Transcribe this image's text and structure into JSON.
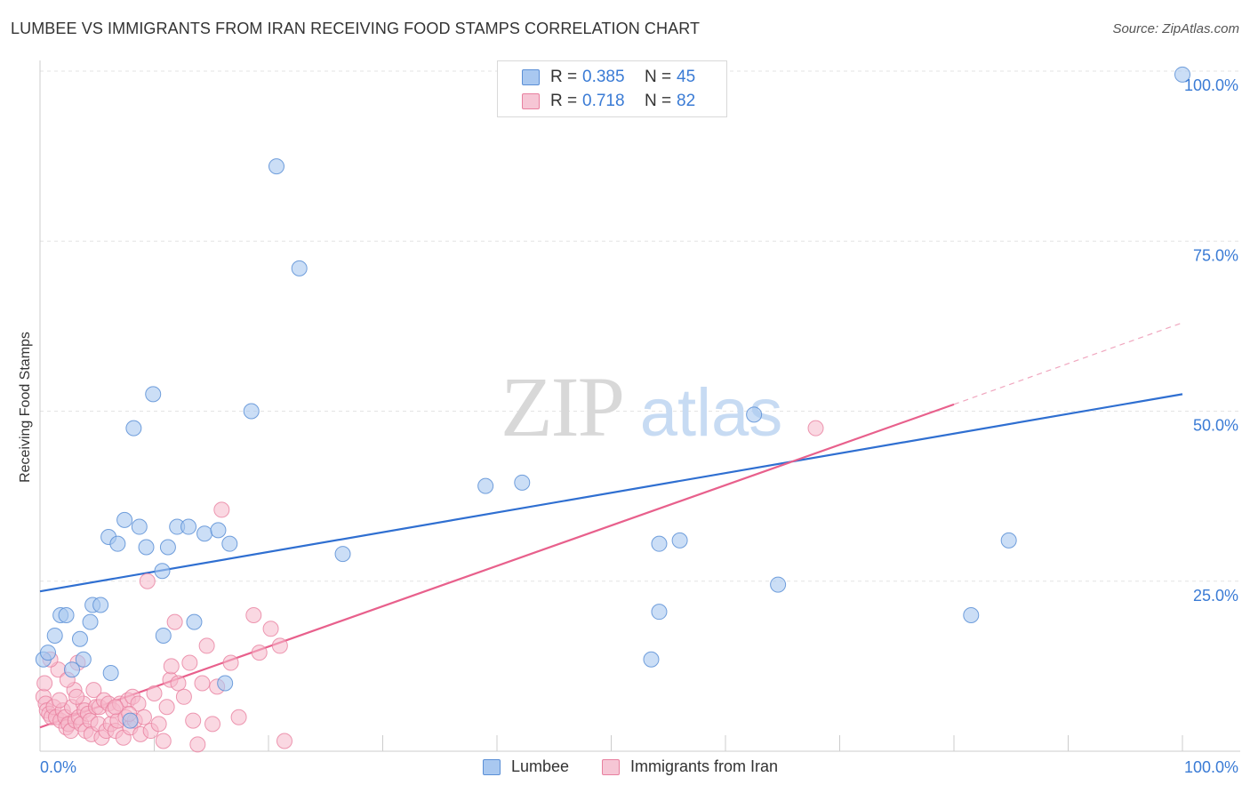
{
  "header": {
    "title": "LUMBEE VS IMMIGRANTS FROM IRAN RECEIVING FOOD STAMPS CORRELATION CHART",
    "source": "Source: ZipAtlas.com"
  },
  "watermark": {
    "zip": "ZIP",
    "atlas": "atlas"
  },
  "legend_top": [
    {
      "r_label": "R =",
      "r_value": "0.385",
      "n_label": "N =",
      "n_value": "45"
    },
    {
      "r_label": "R =",
      "r_value": "0.718",
      "n_label": "N =",
      "n_value": "82"
    }
  ],
  "legend_bottom": [
    "Lumbee",
    "Immigrants from Iran"
  ],
  "colors": {
    "lumbee_fill": "#a9c8f0",
    "lumbee_stroke": "#5b8fd6",
    "lumbee_line": "#2f6fd1",
    "iran_fill": "#f6b8cb",
    "iran_stroke": "#e8809f",
    "iran_line": "#e8608c",
    "grid": "#e3e3e3",
    "tick_text": "#3a7bd5"
  },
  "chart_data": {
    "type": "scatter",
    "title": "LUMBEE VS IMMIGRANTS FROM IRAN RECEIVING FOOD STAMPS CORRELATION CHART",
    "xlabel": "",
    "ylabel": "Receiving Food Stamps",
    "xlim": [
      0,
      100
    ],
    "ylim": [
      0,
      100
    ],
    "x_tick_labels": [
      "0.0%",
      "100.0%"
    ],
    "y_tick_labels": [
      "25.0%",
      "50.0%",
      "75.0%",
      "100.0%"
    ],
    "y_ticks": [
      25,
      50,
      75,
      100
    ],
    "grid": true,
    "legend_placement": "top-center",
    "series": [
      {
        "name": "Lumbee",
        "trend": {
          "x0": 0,
          "y0": 23.5,
          "x1": 100,
          "y1": 52.5,
          "dashed_from": null
        },
        "points": [
          [
            0.3,
            13.5
          ],
          [
            0.7,
            14.5
          ],
          [
            1.3,
            17
          ],
          [
            1.8,
            20
          ],
          [
            2.3,
            20
          ],
          [
            2.8,
            12
          ],
          [
            3.5,
            16.5
          ],
          [
            3.8,
            13.5
          ],
          [
            4.4,
            19
          ],
          [
            4.6,
            21.5
          ],
          [
            5.3,
            21.5
          ],
          [
            6.2,
            11.5
          ],
          [
            6.0,
            31.5
          ],
          [
            6.8,
            30.5
          ],
          [
            7.4,
            34
          ],
          [
            8.2,
            47.5
          ],
          [
            8.7,
            33
          ],
          [
            9.3,
            30
          ],
          [
            9.9,
            52.5
          ],
          [
            10.7,
            26.5
          ],
          [
            10.8,
            17
          ],
          [
            11.2,
            30
          ],
          [
            12.0,
            33
          ],
          [
            13.0,
            33
          ],
          [
            13.5,
            19
          ],
          [
            14.4,
            32
          ],
          [
            15.6,
            32.5
          ],
          [
            16.2,
            10
          ],
          [
            16.6,
            30.5
          ],
          [
            18.5,
            50
          ],
          [
            20.7,
            86
          ],
          [
            22.7,
            71
          ],
          [
            26.5,
            29
          ],
          [
            39,
            39
          ],
          [
            42.2,
            39.5
          ],
          [
            53.5,
            13.5
          ],
          [
            54.2,
            20.5
          ],
          [
            54.2,
            30.5
          ],
          [
            56,
            31
          ],
          [
            62.5,
            49.5
          ],
          [
            64.6,
            24.5
          ],
          [
            81.5,
            20
          ],
          [
            84.8,
            31
          ],
          [
            100,
            99.5
          ],
          [
            7.9,
            4.5
          ]
        ]
      },
      {
        "name": "Immigrants from Iran",
        "trend": {
          "x0": 0,
          "y0": 3.5,
          "x1": 80,
          "y1": 51,
          "dashed_from": 80,
          "dash_x1": 100,
          "dash_y1": 63
        },
        "points": [
          [
            0.3,
            8
          ],
          [
            0.4,
            10
          ],
          [
            0.5,
            7
          ],
          [
            0.6,
            6
          ],
          [
            0.8,
            5.5
          ],
          [
            1,
            5
          ],
          [
            1.2,
            6.5
          ],
          [
            1.4,
            5
          ],
          [
            1.6,
            12
          ],
          [
            1.8,
            4.5
          ],
          [
            2,
            6
          ],
          [
            2.2,
            5
          ],
          [
            2.3,
            3.5
          ],
          [
            2.5,
            4
          ],
          [
            2.7,
            3
          ],
          [
            2.8,
            6.5
          ],
          [
            3,
            9
          ],
          [
            3.1,
            4.5
          ],
          [
            3.3,
            13
          ],
          [
            3.4,
            5
          ],
          [
            3.6,
            4
          ],
          [
            3.8,
            7
          ],
          [
            3.9,
            6
          ],
          [
            4,
            3
          ],
          [
            4.2,
            5.5
          ],
          [
            4.4,
            4.5
          ],
          [
            4.5,
            2.5
          ],
          [
            4.7,
            9
          ],
          [
            4.9,
            6.5
          ],
          [
            5.1,
            4
          ],
          [
            5.2,
            6.5
          ],
          [
            5.4,
            2
          ],
          [
            5.6,
            7.5
          ],
          [
            5.8,
            3
          ],
          [
            6,
            7
          ],
          [
            6.2,
            4
          ],
          [
            6.4,
            6
          ],
          [
            6.6,
            3
          ],
          [
            6.8,
            4.5
          ],
          [
            7,
            7
          ],
          [
            7.3,
            2
          ],
          [
            7.5,
            5
          ],
          [
            7.7,
            7.5
          ],
          [
            7.9,
            3.5
          ],
          [
            8.1,
            8
          ],
          [
            8.3,
            4.5
          ],
          [
            8.6,
            7
          ],
          [
            8.8,
            2.5
          ],
          [
            9.1,
            5
          ],
          [
            9.4,
            25
          ],
          [
            9.7,
            3
          ],
          [
            10,
            8.5
          ],
          [
            10.4,
            4
          ],
          [
            10.8,
            1.5
          ],
          [
            11.1,
            6.5
          ],
          [
            11.4,
            10.5
          ],
          [
            11.8,
            19
          ],
          [
            12.1,
            10
          ],
          [
            12.6,
            8
          ],
          [
            13.1,
            13
          ],
          [
            13.4,
            4.5
          ],
          [
            13.8,
            1
          ],
          [
            14.2,
            10
          ],
          [
            14.6,
            15.5
          ],
          [
            15.1,
            4
          ],
          [
            15.5,
            9.5
          ],
          [
            15.9,
            35.5
          ],
          [
            16.7,
            13
          ],
          [
            17.4,
            5
          ],
          [
            18.7,
            20
          ],
          [
            19.2,
            14.5
          ],
          [
            20.2,
            18
          ],
          [
            21,
            15.5
          ],
          [
            21.4,
            1.5
          ],
          [
            67.9,
            47.5
          ],
          [
            0.9,
            13.5
          ],
          [
            1.7,
            7.5
          ],
          [
            2.4,
            10.5
          ],
          [
            3.2,
            8
          ],
          [
            6.6,
            6.5
          ],
          [
            7.8,
            5.5
          ],
          [
            11.5,
            12.5
          ]
        ]
      }
    ]
  }
}
